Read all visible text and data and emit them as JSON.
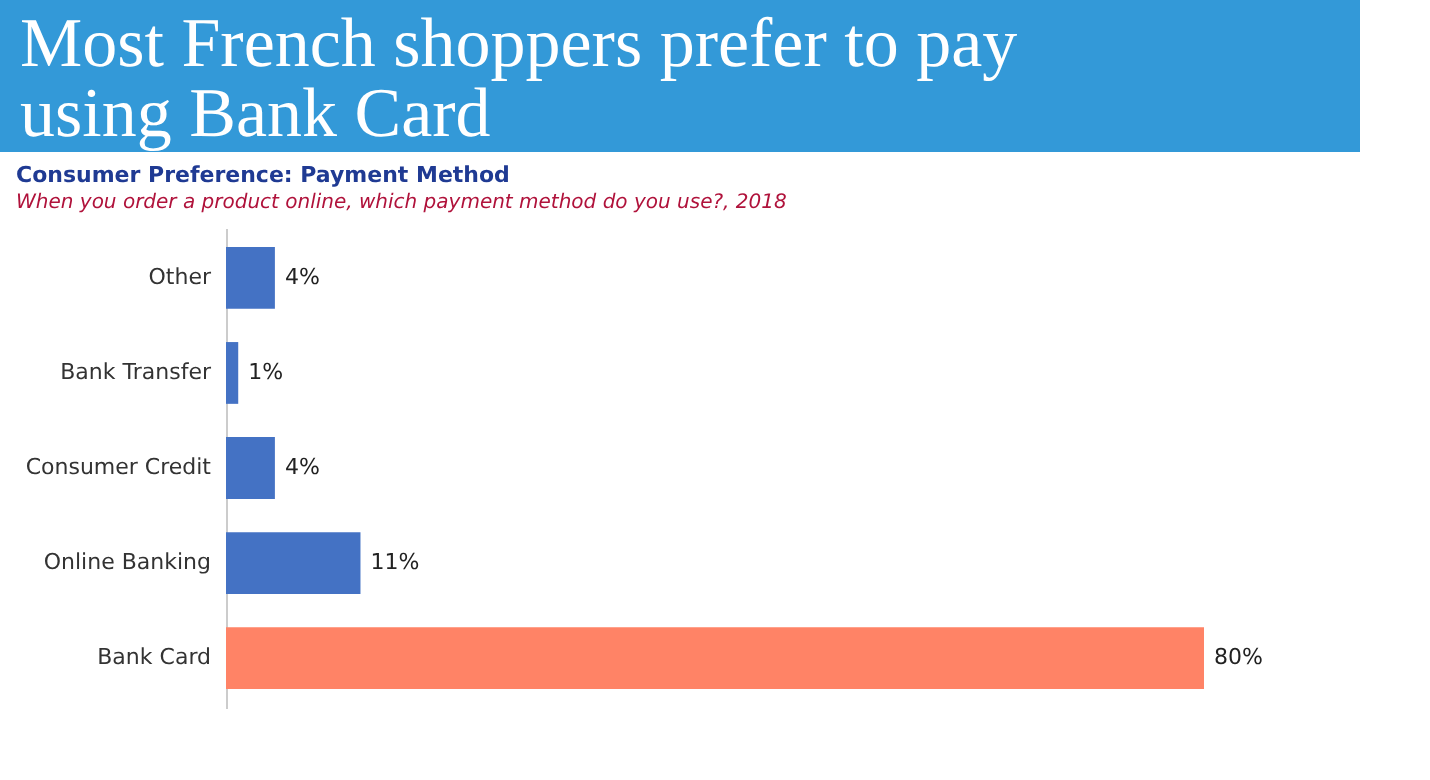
{
  "chart_data": {
    "type": "bar",
    "orientation": "horizontal",
    "title": "Most French shoppers prefer to pay using Bank Card",
    "subtitle": "Consumer Preference: Payment Method",
    "annotations": [
      "When you order a product online, which payment method do you use?, 2018"
    ],
    "categories": [
      "Other",
      "Bank Transfer",
      "Consumer Credit",
      "Online Banking",
      "Bank Card"
    ],
    "values": [
      4,
      1,
      4,
      11,
      80
    ],
    "value_labels": [
      "4%",
      "1%",
      "4%",
      "11%",
      "80%"
    ],
    "colors": [
      "#4472c4",
      "#4472c4",
      "#4472c4",
      "#4472c4",
      "#ff8366"
    ],
    "xlim": [
      0,
      80
    ]
  }
}
